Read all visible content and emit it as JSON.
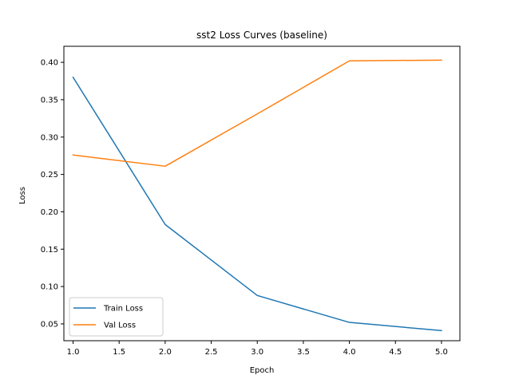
{
  "chart_data": {
    "type": "line",
    "title": "sst2 Loss Curves (baseline)",
    "xlabel": "Epoch",
    "ylabel": "Loss",
    "x": [
      1.0,
      2.0,
      3.0,
      4.0,
      5.0
    ],
    "xlim": [
      0.9,
      5.2
    ],
    "ylim": [
      0.0275,
      0.4215
    ],
    "xticks": [
      1.0,
      1.5,
      2.0,
      2.5,
      3.0,
      3.5,
      4.0,
      4.5,
      5.0
    ],
    "xtick_labels": [
      "1.0",
      "1.5",
      "2.0",
      "2.5",
      "3.0",
      "3.5",
      "4.0",
      "4.5",
      "5.0"
    ],
    "yticks": [
      0.05,
      0.1,
      0.15,
      0.2,
      0.25,
      0.3,
      0.35,
      0.4
    ],
    "ytick_labels": [
      "0.05",
      "0.10",
      "0.15",
      "0.20",
      "0.25",
      "0.30",
      "0.35",
      "0.40"
    ],
    "grid": false,
    "legend": "lower-left",
    "series": [
      {
        "name": "Train Loss",
        "color": "#1f77b4",
        "values": [
          0.38,
          0.183,
          0.088,
          0.052,
          0.041
        ]
      },
      {
        "name": "Val Loss",
        "color": "#ff7f0e",
        "values": [
          0.276,
          0.261,
          0.331,
          0.402,
          0.403
        ]
      }
    ]
  }
}
